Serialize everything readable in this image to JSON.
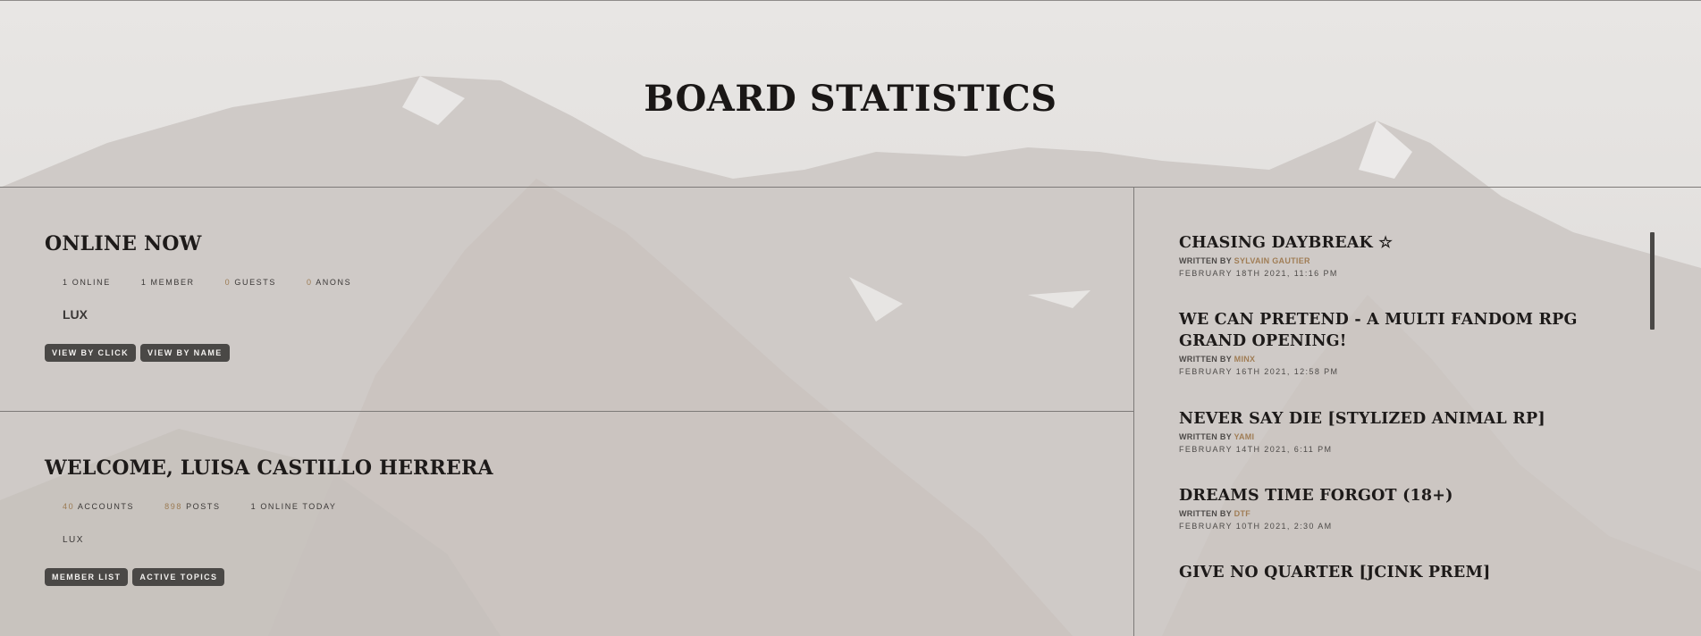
{
  "header": {
    "title": "BOARD STATISTICS"
  },
  "online": {
    "title": "ONLINE NOW",
    "stats": [
      {
        "num": "1",
        "label": "ONLINE"
      },
      {
        "num": "1",
        "label": "MEMBER"
      },
      {
        "num": "0",
        "label": "GUESTS"
      },
      {
        "num": "0",
        "label": "ANONS"
      }
    ],
    "user": "LUX",
    "buttons": [
      "VIEW BY CLICK",
      "VIEW BY NAME"
    ]
  },
  "welcome": {
    "title": "WELCOME, LUISA CASTILLO HERRERA",
    "stats": [
      {
        "num": "40",
        "label": "ACCOUNTS"
      },
      {
        "num": "898",
        "label": "POSTS"
      },
      {
        "num": "1",
        "label": "ONLINE TODAY"
      }
    ],
    "user": "LUX",
    "buttons": [
      "MEMBER LIST",
      "ACTIVE TOPICS"
    ]
  },
  "topics": [
    {
      "title": "CHASING DAYBREAK ☆",
      "written_by": "WRITTEN BY",
      "author": "SYLVAIN GAUTIER",
      "date": "FEBRUARY 18TH 2021, 11:16 PM"
    },
    {
      "title": "WE CAN PRETEND - A MULTI FANDOM RPG GRAND OPENING!",
      "written_by": "WRITTEN BY",
      "author": "MINX",
      "date": "FEBRUARY 16TH 2021, 12:58 PM"
    },
    {
      "title": "NEVER SAY DIE [STYLIZED ANIMAL RP]",
      "written_by": "WRITTEN BY",
      "author": "YAMI",
      "date": "FEBRUARY 14TH 2021, 6:11 PM"
    },
    {
      "title": "DREAMS TIME FORGOT (18+)",
      "written_by": "WRITTEN BY",
      "author": "DTF",
      "date": "FEBRUARY 10TH 2021, 2:30 AM"
    },
    {
      "title": "GIVE NO QUARTER [JCINK PREM]"
    }
  ],
  "colors": {
    "accent": "#9b7a52",
    "button_bg": "#4a4846",
    "text": "#1a1818"
  }
}
